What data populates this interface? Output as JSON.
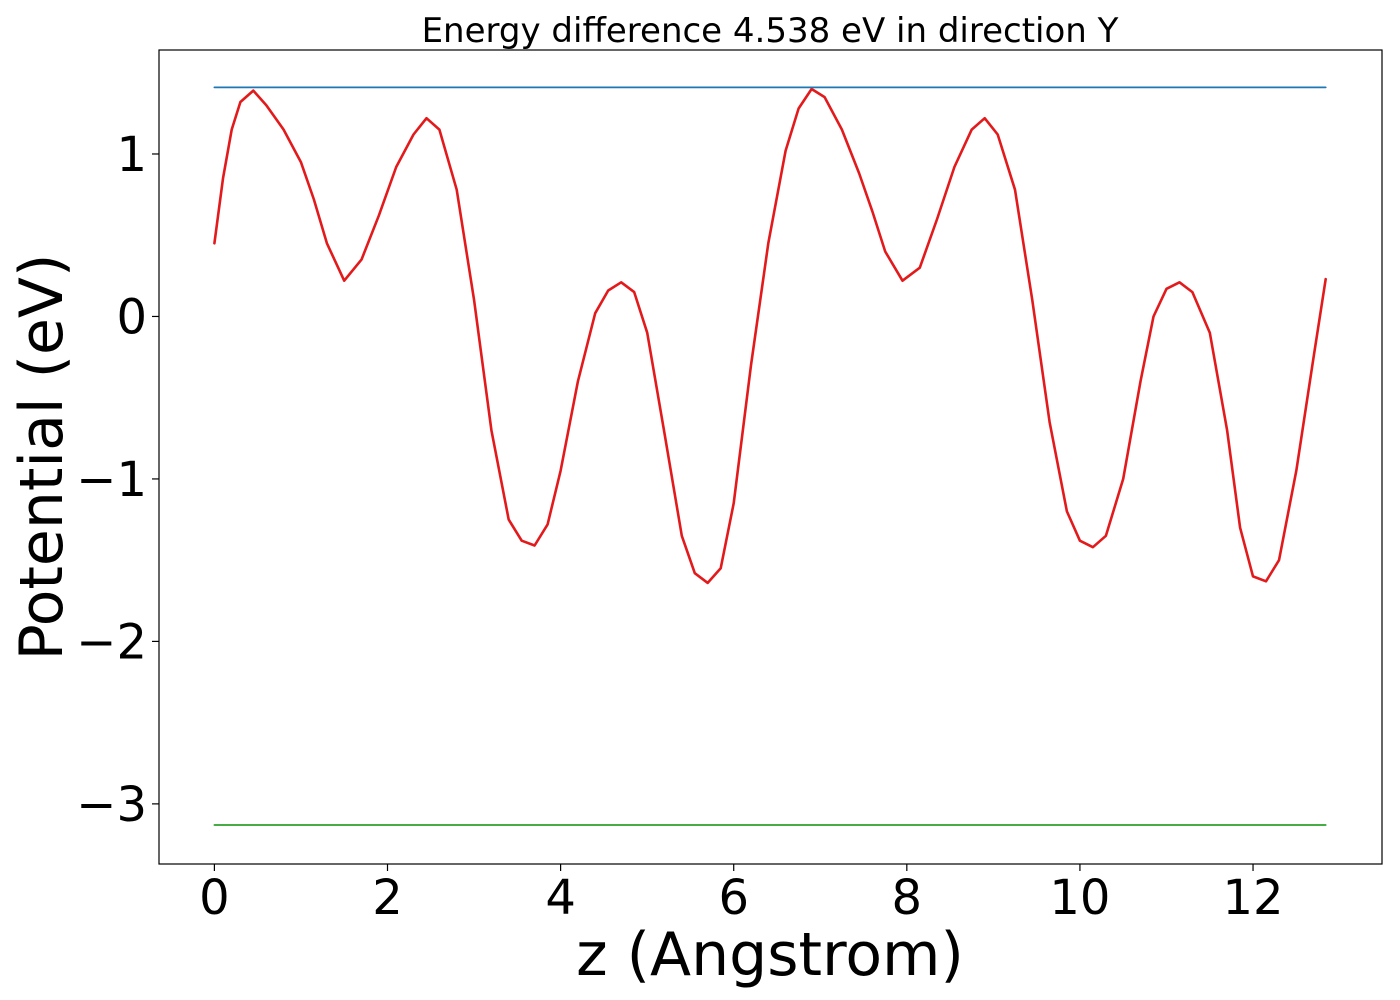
{
  "chart_data": {
    "type": "line",
    "title": "Energy difference 4.538 eV in direction Y",
    "xlabel": "z (Angstrom)",
    "ylabel": "Potential (eV)",
    "xlim": [
      -0.64,
      13.49
    ],
    "ylim": [
      -3.37,
      1.64
    ],
    "xticks": [
      0,
      2,
      4,
      6,
      8,
      10,
      12
    ],
    "yticks": [
      -3,
      -2,
      -1,
      0,
      1
    ],
    "xtick_labels": [
      "0",
      "2",
      "4",
      "6",
      "8",
      "10",
      "12"
    ],
    "ytick_labels": [
      "−3",
      "−2",
      "−1",
      "0",
      "1"
    ],
    "grid": false,
    "colors": {
      "potential": "#e31a1c",
      "upper_level": "#1f77b4",
      "lower_level": "#2ca02c"
    },
    "series": [
      {
        "key": "potential",
        "x": [
          0.0,
          0.1,
          0.2,
          0.3,
          0.45,
          0.6,
          0.8,
          1.0,
          1.15,
          1.3,
          1.5,
          1.7,
          1.9,
          2.1,
          2.3,
          2.45,
          2.6,
          2.8,
          3.0,
          3.2,
          3.4,
          3.55,
          3.7,
          3.85,
          4.0,
          4.2,
          4.4,
          4.55,
          4.7,
          4.85,
          5.0,
          5.2,
          5.4,
          5.55,
          5.7,
          5.85,
          6.0,
          6.2,
          6.4,
          6.6,
          6.75,
          6.9,
          7.05,
          7.25,
          7.45,
          7.6,
          7.75,
          7.95,
          8.15,
          8.35,
          8.55,
          8.75,
          8.9,
          9.05,
          9.25,
          9.45,
          9.65,
          9.85,
          10.0,
          10.15,
          10.3,
          10.5,
          10.7,
          10.85,
          11.0,
          11.15,
          11.3,
          11.5,
          11.7,
          11.85,
          12.0,
          12.15,
          12.3,
          12.5,
          12.7,
          12.84
        ],
        "y": [
          0.45,
          0.85,
          1.15,
          1.32,
          1.39,
          1.3,
          1.15,
          0.95,
          0.72,
          0.45,
          0.22,
          0.35,
          0.62,
          0.92,
          1.12,
          1.22,
          1.15,
          0.78,
          0.1,
          -0.7,
          -1.25,
          -1.38,
          -1.41,
          -1.28,
          -0.95,
          -0.4,
          0.02,
          0.16,
          0.21,
          0.15,
          -0.1,
          -0.72,
          -1.35,
          -1.58,
          -1.64,
          -1.55,
          -1.15,
          -0.3,
          0.45,
          1.02,
          1.28,
          1.4,
          1.35,
          1.15,
          0.88,
          0.65,
          0.4,
          0.22,
          0.3,
          0.6,
          0.92,
          1.15,
          1.22,
          1.12,
          0.78,
          0.1,
          -0.65,
          -1.2,
          -1.38,
          -1.42,
          -1.35,
          -1.0,
          -0.4,
          0.0,
          0.17,
          0.21,
          0.15,
          -0.1,
          -0.7,
          -1.3,
          -1.6,
          -1.63,
          -1.5,
          -0.95,
          -0.25,
          0.23
        ]
      },
      {
        "key": "upper_level",
        "x": [
          0.0,
          12.84
        ],
        "y": [
          1.41,
          1.41
        ]
      },
      {
        "key": "lower_level",
        "x": [
          0.0,
          12.84
        ],
        "y": [
          -3.13,
          -3.13
        ]
      }
    ]
  }
}
